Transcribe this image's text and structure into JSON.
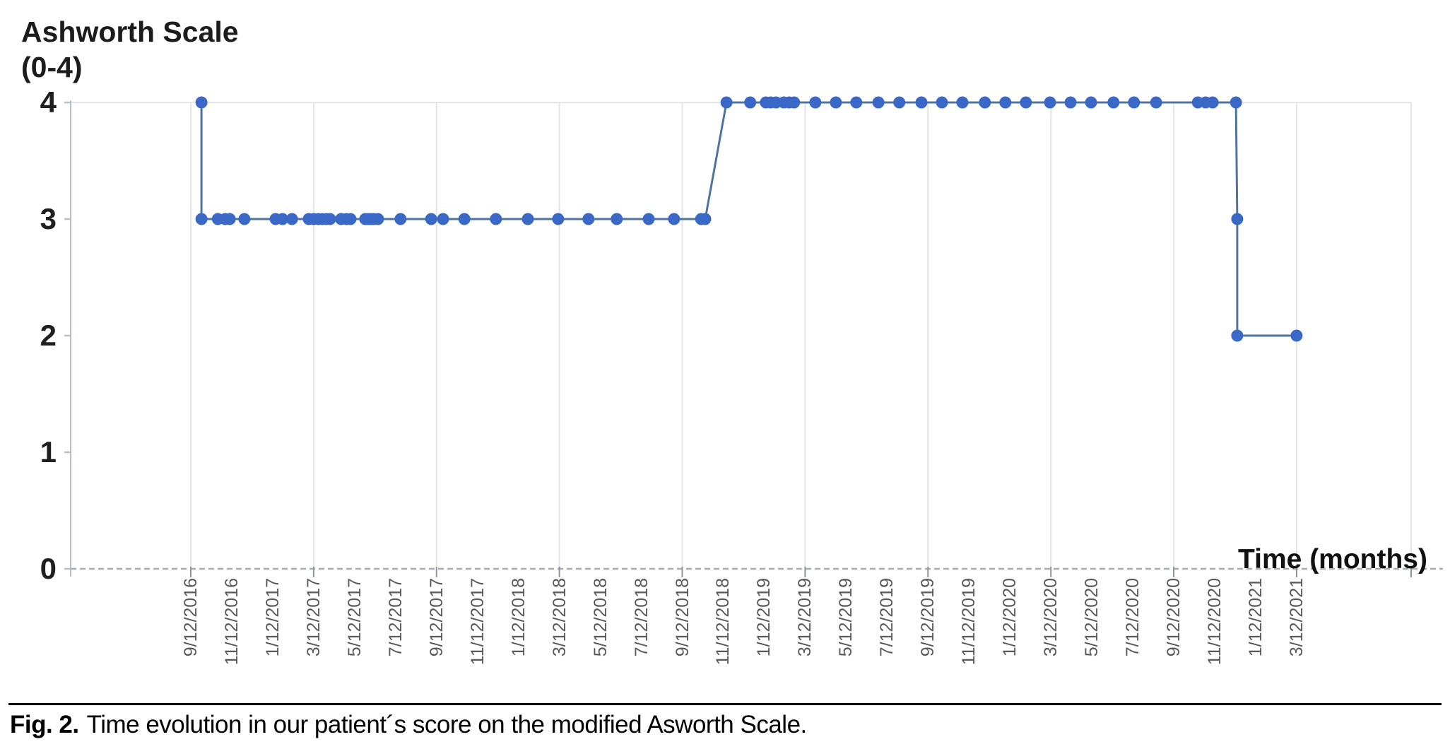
{
  "figure": {
    "y_axis_title_line1": "Ashworth Scale",
    "y_axis_title_line2": "(0-4)",
    "x_axis_title": "Time (months)",
    "caption_label": "Fig. 2.",
    "caption_text": "Time evolution in our patient´s score on the modified Asworth Scale."
  },
  "chart_data": {
    "type": "line",
    "title": "Ashworth Scale (0-4)",
    "xlabel": "Time (months)",
    "ylabel": "Ashworth Scale (0-4)",
    "ylim": [
      0,
      4
    ],
    "y_ticks": [
      4,
      3,
      2,
      1,
      0
    ],
    "y_tick_labels": [
      "4",
      "3",
      "2",
      "1",
      "0"
    ],
    "x_tick_labels": [
      "9/12/2016",
      "11/12/2016",
      "1/12/2017",
      "3/12/2017",
      "5/12/2017",
      "7/12/2017",
      "9/12/2017",
      "11/12/2017",
      "1/12/2018",
      "3/12/2018",
      "5/12/2018",
      "7/12/2018",
      "9/12/2018",
      "11/12/2018",
      "1/12/2019",
      "3/12/2019",
      "5/12/2019",
      "7/12/2019",
      "9/12/2019",
      "11/12/2019",
      "1/12/2020",
      "3/12/2020",
      "5/12/2020",
      "7/12/2020",
      "9/12/2020",
      "11/12/2020",
      "1/12/2021",
      "3/12/2021"
    ],
    "x_unit": "x = axis label index; 0 = 9/12/2016, each index step = 2 months",
    "gridlines": "vertical gridlines at every 3rd x label (6-month intervals); dashed horizontal baseline at y=0; solid light top border at y=4",
    "legend": "none",
    "marker": "circle",
    "colors": {
      "marker": "#3a68c6",
      "line": "#51749f",
      "gridline": "#e4e4ea",
      "axis_line": "#b5bfd0",
      "zero_dash": "#a9a9b2",
      "tick": "#8f949c",
      "x_label_text": "#595959",
      "label_text": "#1f1f1f"
    },
    "points": [
      {
        "x": 0.26,
        "y": 4
      },
      {
        "x": 0.26,
        "y": 3
      },
      {
        "x": 0.66,
        "y": 3
      },
      {
        "x": 0.84,
        "y": 3
      },
      {
        "x": 0.95,
        "y": 3
      },
      {
        "x": 1.31,
        "y": 3
      },
      {
        "x": 2.07,
        "y": 3
      },
      {
        "x": 2.24,
        "y": 3
      },
      {
        "x": 2.47,
        "y": 3
      },
      {
        "x": 2.88,
        "y": 3
      },
      {
        "x": 3.0,
        "y": 3
      },
      {
        "x": 3.11,
        "y": 3
      },
      {
        "x": 3.21,
        "y": 3
      },
      {
        "x": 3.31,
        "y": 3
      },
      {
        "x": 3.4,
        "y": 3
      },
      {
        "x": 3.67,
        "y": 3
      },
      {
        "x": 3.8,
        "y": 3
      },
      {
        "x": 3.9,
        "y": 3
      },
      {
        "x": 4.26,
        "y": 3
      },
      {
        "x": 4.33,
        "y": 3
      },
      {
        "x": 4.4,
        "y": 3
      },
      {
        "x": 4.47,
        "y": 3
      },
      {
        "x": 4.57,
        "y": 3
      },
      {
        "x": 5.12,
        "y": 3
      },
      {
        "x": 5.87,
        "y": 3
      },
      {
        "x": 6.16,
        "y": 3
      },
      {
        "x": 6.68,
        "y": 3
      },
      {
        "x": 7.45,
        "y": 3
      },
      {
        "x": 8.23,
        "y": 3
      },
      {
        "x": 8.97,
        "y": 3
      },
      {
        "x": 9.71,
        "y": 3
      },
      {
        "x": 10.4,
        "y": 3
      },
      {
        "x": 11.18,
        "y": 3
      },
      {
        "x": 11.8,
        "y": 3
      },
      {
        "x": 12.46,
        "y": 3
      },
      {
        "x": 12.56,
        "y": 3
      },
      {
        "x": 13.08,
        "y": 4
      },
      {
        "x": 13.66,
        "y": 4
      },
      {
        "x": 14.04,
        "y": 4
      },
      {
        "x": 14.16,
        "y": 4
      },
      {
        "x": 14.29,
        "y": 4
      },
      {
        "x": 14.48,
        "y": 4
      },
      {
        "x": 14.61,
        "y": 4
      },
      {
        "x": 14.73,
        "y": 4
      },
      {
        "x": 15.25,
        "y": 4
      },
      {
        "x": 15.75,
        "y": 4
      },
      {
        "x": 16.25,
        "y": 4
      },
      {
        "x": 16.79,
        "y": 4
      },
      {
        "x": 17.3,
        "y": 4
      },
      {
        "x": 17.84,
        "y": 4
      },
      {
        "x": 18.34,
        "y": 4
      },
      {
        "x": 18.84,
        "y": 4
      },
      {
        "x": 19.39,
        "y": 4
      },
      {
        "x": 19.89,
        "y": 4
      },
      {
        "x": 20.39,
        "y": 4
      },
      {
        "x": 20.98,
        "y": 4
      },
      {
        "x": 21.48,
        "y": 4
      },
      {
        "x": 21.98,
        "y": 4
      },
      {
        "x": 22.53,
        "y": 4
      },
      {
        "x": 23.03,
        "y": 4
      },
      {
        "x": 23.57,
        "y": 4
      },
      {
        "x": 24.59,
        "y": 4
      },
      {
        "x": 24.78,
        "y": 4
      },
      {
        "x": 24.95,
        "y": 4
      },
      {
        "x": 25.52,
        "y": 4
      },
      {
        "x": 25.55,
        "y": 3
      },
      {
        "x": 25.55,
        "y": 2
      },
      {
        "x": 27.0,
        "y": 2
      }
    ]
  }
}
